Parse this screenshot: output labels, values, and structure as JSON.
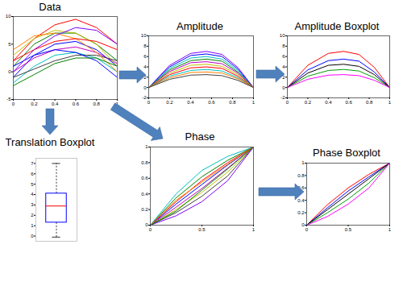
{
  "chart_data": [
    {
      "type": "line",
      "title": "Data",
      "x": [
        0,
        0.2,
        0.4,
        0.6,
        0.8,
        1
      ],
      "xlim": [
        0,
        1
      ],
      "xticks": [
        0,
        0.2,
        0.4,
        0.6,
        0.8,
        1
      ],
      "ylim": [
        -5,
        10
      ],
      "yticks": [
        -5,
        0,
        5,
        10
      ],
      "series": [
        {
          "color": "#0000ff",
          "values": [
            -1,
            3,
            5,
            5.5,
            4,
            1
          ]
        },
        {
          "color": "#008000",
          "values": [
            1,
            5,
            7,
            7,
            5,
            2
          ]
        },
        {
          "color": "#ff0000",
          "values": [
            2,
            6,
            8.5,
            9.5,
            8,
            5
          ]
        },
        {
          "color": "#00bfbf",
          "values": [
            -2,
            1,
            3,
            3.5,
            2.5,
            0
          ]
        },
        {
          "color": "#bf00bf",
          "values": [
            0,
            2.5,
            4,
            4.5,
            3.5,
            1.5
          ]
        },
        {
          "color": "#bfbf00",
          "values": [
            3,
            6,
            7.5,
            7,
            5,
            1
          ]
        },
        {
          "color": "#404040",
          "values": [
            -1,
            0.5,
            2,
            3,
            3,
            2
          ]
        },
        {
          "color": "#ff8000",
          "values": [
            4,
            6.5,
            7,
            6,
            3.5,
            0
          ]
        },
        {
          "color": "#0000ff",
          "values": [
            1,
            3,
            4,
            3.5,
            2,
            -1
          ]
        },
        {
          "color": "#008000",
          "values": [
            -2.5,
            -0.5,
            1.5,
            2.5,
            2.5,
            1
          ]
        },
        {
          "color": "#ff0000",
          "values": [
            2,
            4,
            5.5,
            6,
            5.5,
            4
          ]
        },
        {
          "color": "#7f00ff",
          "values": [
            0,
            4,
            6.5,
            8,
            7.5,
            5
          ]
        }
      ]
    },
    {
      "type": "line",
      "title": "Amplitude",
      "x": [
        0,
        0.2,
        0.4,
        0.55,
        0.7,
        0.85,
        1
      ],
      "xlim": [
        0,
        1
      ],
      "xticks": [
        0,
        0.2,
        0.4,
        0.6,
        0.8,
        1
      ],
      "ylim": [
        -2,
        10
      ],
      "yticks": [
        -2,
        0,
        2,
        4,
        6,
        8,
        10
      ],
      "series": [
        {
          "color": "#7f00ff",
          "values": [
            0,
            4.3,
            6.6,
            7,
            6.4,
            3.9,
            0
          ]
        },
        {
          "color": "#0000ff",
          "values": [
            0,
            4,
            6.2,
            6.5,
            6,
            3.6,
            0
          ]
        },
        {
          "color": "#00bfbf",
          "values": [
            0,
            3.7,
            5.7,
            6,
            5.5,
            3.3,
            0
          ]
        },
        {
          "color": "#008000",
          "values": [
            0,
            3.4,
            5.2,
            5.5,
            5.1,
            3,
            0
          ]
        },
        {
          "color": "#bf00bf",
          "values": [
            0,
            3.1,
            4.8,
            5,
            4.6,
            2.8,
            0
          ]
        },
        {
          "color": "#bfbf00",
          "values": [
            0,
            2.8,
            4.3,
            4.5,
            4.1,
            2.5,
            0
          ]
        },
        {
          "color": "#ff0000",
          "values": [
            0,
            2.5,
            3.8,
            4,
            3.7,
            2.2,
            0
          ]
        },
        {
          "color": "#00bfbf",
          "values": [
            0,
            2.2,
            3.3,
            3.5,
            3.2,
            1.9,
            0
          ]
        },
        {
          "color": "#ff8000",
          "values": [
            0,
            1.9,
            2.9,
            3,
            2.8,
            1.7,
            0
          ]
        },
        {
          "color": "#404040",
          "values": [
            0,
            1.6,
            2.4,
            2.5,
            2.3,
            1.4,
            0
          ]
        }
      ]
    },
    {
      "type": "line",
      "title": "Amplitude Boxplot",
      "x": [
        0,
        0.2,
        0.4,
        0.55,
        0.7,
        0.85,
        1
      ],
      "xlim": [
        0,
        1
      ],
      "xticks": [
        0,
        0.2,
        0.4,
        0.6,
        0.8,
        1
      ],
      "ylim": [
        -2,
        10
      ],
      "yticks": [
        -2,
        0,
        2,
        4,
        6,
        8,
        10
      ],
      "series": [
        {
          "color": "#ff0000",
          "values": [
            0,
            4.3,
            6.6,
            7,
            6.4,
            3.9,
            0
          ]
        },
        {
          "color": "#0000ff",
          "values": [
            0,
            3.4,
            5.2,
            5.5,
            5.1,
            3,
            0
          ]
        },
        {
          "color": "#000000",
          "values": [
            0,
            2.8,
            4.3,
            4.5,
            4.1,
            2.5,
            0
          ]
        },
        {
          "color": "#00a000",
          "values": [
            0,
            2.2,
            3.3,
            3.5,
            3.2,
            1.9,
            0
          ]
        },
        {
          "color": "#ff00ff",
          "values": [
            0,
            1.6,
            2.4,
            2.5,
            2.3,
            1.4,
            0
          ]
        }
      ]
    },
    {
      "type": "boxplot",
      "title": "Translation Boxplot",
      "ylim": [
        -0.5,
        7.5
      ],
      "yticks": [
        0,
        1,
        2,
        3,
        4,
        5,
        6,
        7
      ],
      "min": -0.1,
      "q1": 1.3,
      "median": 2.9,
      "q3": 4.1,
      "max": 7,
      "color": "#0000ff"
    },
    {
      "type": "line",
      "title": "Phase",
      "x": [
        0,
        0.25,
        0.5,
        0.75,
        1
      ],
      "xlim": [
        0,
        1
      ],
      "xticks": [
        0,
        0.5,
        1
      ],
      "ylim": [
        0,
        1
      ],
      "yticks": [
        0,
        0.2,
        0.4,
        0.6,
        0.8,
        1
      ],
      "series": [
        {
          "color": "#00bfbf",
          "values": [
            0,
            0.4,
            0.7,
            0.88,
            1
          ]
        },
        {
          "color": "#008000",
          "values": [
            0,
            0.35,
            0.62,
            0.83,
            1
          ]
        },
        {
          "color": "#ff0000",
          "values": [
            0,
            0.3,
            0.57,
            0.8,
            1
          ]
        },
        {
          "color": "#0000ff",
          "values": [
            0,
            0.27,
            0.52,
            0.77,
            1
          ]
        },
        {
          "color": "#bf00bf",
          "values": [
            0,
            0.23,
            0.47,
            0.73,
            1
          ]
        },
        {
          "color": "#bfbf00",
          "values": [
            0,
            0.2,
            0.42,
            0.68,
            1
          ]
        },
        {
          "color": "#404040",
          "values": [
            0,
            0.16,
            0.37,
            0.63,
            1
          ]
        },
        {
          "color": "#7f00ff",
          "values": [
            0,
            0.12,
            0.3,
            0.57,
            1
          ]
        },
        {
          "color": "#ff8000",
          "values": [
            0,
            0.32,
            0.55,
            0.78,
            1
          ]
        },
        {
          "color": "#008000",
          "values": [
            0,
            0.18,
            0.45,
            0.72,
            1
          ]
        }
      ]
    },
    {
      "type": "line",
      "title": "Phase Boxplot",
      "x": [
        0,
        0.25,
        0.5,
        0.75,
        1
      ],
      "xlim": [
        0,
        1
      ],
      "xticks": [
        0,
        0.5,
        1
      ],
      "ylim": [
        0,
        1
      ],
      "yticks": [
        0,
        0.2,
        0.4,
        0.6,
        0.8,
        1
      ],
      "series": [
        {
          "color": "#ff0000",
          "values": [
            0,
            0.33,
            0.6,
            0.82,
            1
          ]
        },
        {
          "color": "#0000ff",
          "values": [
            0,
            0.28,
            0.55,
            0.78,
            1
          ]
        },
        {
          "color": "#000000",
          "values": [
            0,
            0.25,
            0.5,
            0.75,
            1
          ]
        },
        {
          "color": "#00a000",
          "values": [
            0,
            0.2,
            0.42,
            0.68,
            1
          ]
        },
        {
          "color": "#ff00ff",
          "values": [
            0,
            0.14,
            0.34,
            0.6,
            1
          ]
        }
      ]
    }
  ]
}
